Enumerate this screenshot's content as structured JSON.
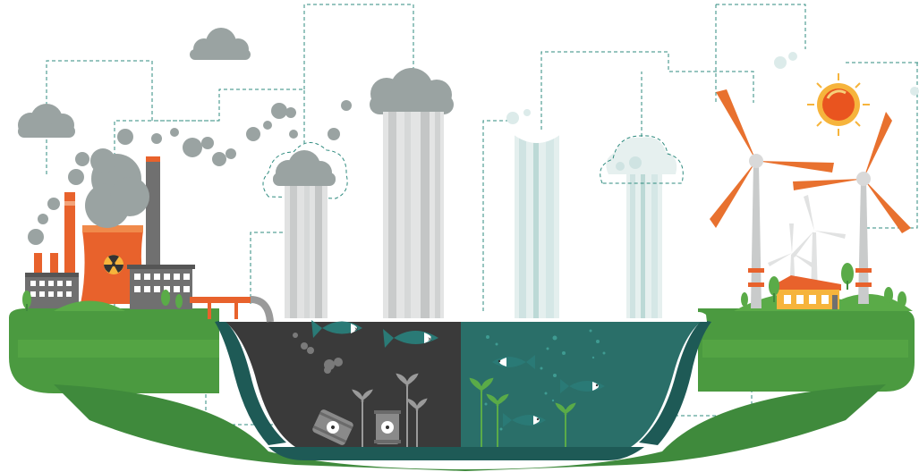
{
  "scene": {
    "colors": {
      "grass_dark": "#3f8a3c",
      "grass_light": "#5aab48",
      "grass_mid": "#4b9a40",
      "water_deep": "#1e5a56",
      "water_teal": "#2a6f69",
      "polluted_water": "#3a3a3a",
      "smoke_gray": "#9aa3a2",
      "rain_gray": "#c9cbcb",
      "rain_clean": "#cfe3e2",
      "factory_orange": "#e8622c",
      "factory_gray": "#707070",
      "turbine_orange": "#e8712f",
      "sun_orange": "#e9541f",
      "sun_yellow": "#f6b43c",
      "dashed_line": "#2f8b7f",
      "fish": "#2a7a76"
    },
    "icons": {
      "polluted_side": [
        "nuclear-plant-icon",
        "smokestack-icon",
        "factory-building-icon",
        "radioactive-barrel-icon",
        "dead-fish-icon",
        "smoke-cloud-icon",
        "acid-rain-icon"
      ],
      "clean_side": [
        "wind-turbine-icon",
        "sun-icon",
        "house-icon",
        "tree-icon",
        "fish-icon",
        "seaweed-icon",
        "clean-rain-icon"
      ]
    }
  }
}
